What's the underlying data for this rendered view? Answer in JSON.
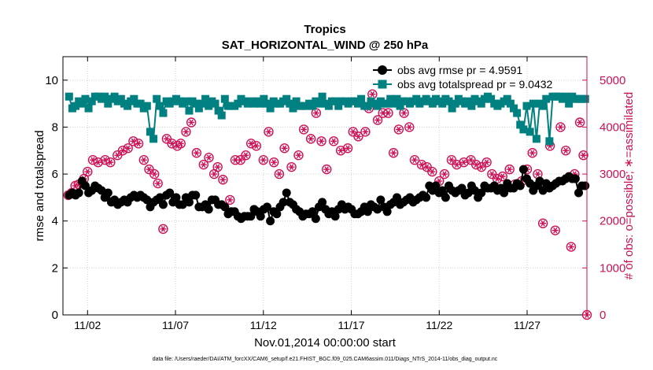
{
  "chart_data": {
    "type": "line",
    "title": "Tropics",
    "subtitle": "SAT_HORIZONTAL_WIND @ 250 hPa",
    "xlabel": "Nov.01,2014 00:00:00 start",
    "ylabel_left": "rmse and totalspread",
    "ylabel_right": "# of obs: o=possible; ∗=assimilated",
    "footer": "data file: /Users/raeder/DAI/ATM_forcXX/CAM6_setup/f.e21.FHIST_BGC.f09_025.CAM6assim.011/Diags_NTrS_2014-11/obs_diag_output.nc",
    "xlim": [
      0.6,
      30.4
    ],
    "ylim_left": [
      0,
      11
    ],
    "ylim_right": [
      0,
      5500
    ],
    "grid": true,
    "legend_position": "top-right",
    "x_ticks": [
      2,
      7,
      12,
      17,
      22,
      27
    ],
    "x_tick_labels": [
      "11/02",
      "11/07",
      "11/12",
      "11/17",
      "11/22",
      "11/27"
    ],
    "y_left_ticks": [
      0,
      2,
      4,
      6,
      8,
      10
    ],
    "y_left_tick_labels": [
      "0",
      "2",
      "4",
      "6",
      "8",
      "10"
    ],
    "y_right_ticks": [
      0,
      1000,
      2000,
      3000,
      4000,
      5000
    ],
    "y_right_tick_labels": [
      "0",
      "1000",
      "2000",
      "3000",
      "4000",
      "5000"
    ],
    "colors": {
      "rmse": "#000000",
      "spread": "#008080",
      "obs": "#cc1055",
      "axis": "#000000",
      "grid": "#d0d0d0"
    },
    "series": [
      {
        "name": "obs avg rmse pr = 4.9591",
        "axis": "left",
        "values": [
          5.1,
          5.2,
          5.1,
          5.2,
          5.7,
          5.5,
          5.2,
          5.3,
          5.5,
          5.4,
          5.3,
          5.0,
          5.2,
          4.8,
          4.9,
          4.7,
          4.8,
          4.9,
          4.8,
          5.0,
          5.1,
          5.0,
          5.1,
          5.0,
          4.9,
          4.6,
          4.8,
          4.9,
          5.0,
          4.7,
          5.1,
          5.2,
          4.8,
          5.0,
          4.7,
          4.7,
          5.0,
          4.8,
          5.1,
          5.1,
          4.6,
          4.6,
          4.7,
          4.5,
          4.9,
          4.9,
          4.7,
          4.7,
          4.6,
          4.3,
          4.4,
          4.4,
          4.2,
          4.1,
          4.2,
          4.2,
          4.2,
          4.5,
          4.4,
          4.2,
          4.5,
          4.6,
          4.0,
          4.4,
          4.3,
          4.6,
          4.8,
          5.2,
          4.8,
          4.7,
          4.5,
          4.4,
          4.2,
          4.3,
          4.3,
          4.4,
          4.1,
          4.6,
          4.8,
          4.5,
          4.3,
          4.4,
          4.2,
          4.5,
          4.7,
          4.5,
          4.6,
          4.5,
          4.3,
          4.3,
          4.4,
          4.6,
          4.4,
          4.7,
          4.6,
          4.5,
          4.9,
          4.6,
          4.4,
          4.7,
          4.8,
          5.0,
          4.7,
          4.8,
          4.9,
          5.0,
          4.8,
          4.9,
          5.0,
          5.1,
          5.0,
          5.5,
          5.3,
          5.5,
          5.2,
          5.3,
          5.0,
          5.5,
          5.3,
          5.2,
          5.3,
          5.4,
          5.1,
          5.2,
          5.5,
          5.3,
          5.0,
          5.2,
          5.5,
          5.4,
          5.4,
          5.5,
          5.3,
          5.4,
          5.2,
          5.6,
          5.4,
          5.4,
          5.6,
          5.5,
          6.2,
          5.8,
          5.6,
          5.3,
          5.5,
          5.7,
          5.3,
          5.6,
          5.4,
          5.5,
          5.6,
          5.7,
          5.7,
          5.8,
          5.9,
          5.8,
          5.8,
          5.2,
          5.5,
          5.5
        ]
      },
      {
        "name": "obs avg totalspread pr = 9.0432",
        "axis": "left",
        "values": [
          9.3,
          8.8,
          8.9,
          9.1,
          9.0,
          9.2,
          8.8,
          9.1,
          9.3,
          9.3,
          9.2,
          9.3,
          9.0,
          9.2,
          9.3,
          9.1,
          9.2,
          9.0,
          8.9,
          9.1,
          9.2,
          9.0,
          9.0,
          8.8,
          8.9,
          7.8,
          7.5,
          9.2,
          8.9,
          8.6,
          9.1,
          9.0,
          9.1,
          9.2,
          9.1,
          9.0,
          9.1,
          8.7,
          9.1,
          9.0,
          8.8,
          9.0,
          9.2,
          8.9,
          9.1,
          9.0,
          8.7,
          8.5,
          9.2,
          8.9,
          8.9,
          8.9,
          9.0,
          9.2,
          9.1,
          9.0,
          9.1,
          9.0,
          9.1,
          9.0,
          9.2,
          9.0,
          8.8,
          9.1,
          9.0,
          9.0,
          9.1,
          9.2,
          9.0,
          8.8,
          9.1,
          8.9,
          8.9,
          8.9,
          9.0,
          8.9,
          9.1,
          9.0,
          9.3,
          9.0,
          8.9,
          9.1,
          9.1,
          8.9,
          9.1,
          9.1,
          9.0,
          9.1,
          9.1,
          9.0,
          9.2,
          8.9,
          8.9,
          9.1,
          9.0,
          8.9,
          9.1,
          9.0,
          9.0,
          9.2,
          9.0,
          9.2,
          8.9,
          9.1,
          9.1,
          9.0,
          9.1,
          9.2,
          9.0,
          9.1,
          9.2,
          9.1,
          9.0,
          9.2,
          9.1,
          9.0,
          9.2,
          9.1,
          8.8,
          9.0,
          9.2,
          9.1,
          9.0,
          9.1,
          8.9,
          9.2,
          9.1,
          9.0,
          9.2,
          9.3,
          9.2,
          9.0,
          8.9,
          9.0,
          9.1,
          9.2,
          9.0,
          8.8,
          8.6,
          8.1,
          7.9,
          8.9,
          7.8,
          9.0,
          7.5,
          9.0,
          8.9,
          9.2,
          7.4,
          9.3,
          9.3,
          9.3,
          9.2,
          9.3,
          9.0,
          9.3,
          9.2,
          9.2,
          9.2,
          9.2
        ]
      },
      {
        "name": "obs possible",
        "axis": "right",
        "x": [
          0.9,
          1.1,
          1.3,
          1.5,
          1.8,
          2.0,
          2.3,
          2.6,
          3.0,
          3.3,
          3.7,
          4.0,
          4.3,
          4.6,
          4.9,
          5.2,
          5.5,
          5.8,
          6.0,
          6.3,
          6.5,
          6.8,
          7.1,
          7.3,
          7.6,
          7.9,
          8.2,
          8.6,
          8.9,
          9.2,
          9.4,
          9.7,
          10.1,
          10.4,
          10.7,
          11.0,
          11.3,
          11.6,
          12.0,
          12.3,
          12.6,
          12.9,
          13.2,
          13.6,
          14.0,
          14.3,
          14.7,
          15.0,
          15.3,
          15.6,
          16.0,
          16.4,
          16.8,
          17.1,
          17.4,
          17.8,
          18.0,
          18.2,
          18.5,
          18.8,
          19.1,
          19.4,
          19.7,
          20.0,
          20.3,
          20.6,
          21.0,
          21.3,
          21.6,
          22.0,
          22.3,
          22.7,
          23.0,
          23.4,
          23.8,
          24.1,
          24.4,
          24.7,
          25.0,
          25.3,
          25.6,
          26.0,
          26.3,
          26.7,
          27.0,
          27.3,
          27.6,
          27.9,
          28.3,
          28.6,
          28.9,
          29.2,
          29.5,
          29.7,
          30.0,
          30.2
        ],
        "values": [
          2550,
          2600,
          2750,
          2780,
          2900,
          3050,
          3300,
          3250,
          3300,
          3250,
          3400,
          3500,
          3550,
          3700,
          3650,
          3300,
          3100,
          3000,
          2800,
          1830,
          3750,
          3650,
          3600,
          3650,
          3900,
          4100,
          3450,
          3200,
          3350,
          3000,
          3150,
          2880,
          2450,
          3300,
          3300,
          3400,
          3650,
          3600,
          3300,
          3900,
          3250,
          3000,
          3550,
          3150,
          3400,
          3950,
          3750,
          4300,
          3700,
          3100,
          3700,
          3500,
          3550,
          3900,
          3800,
          3900,
          4400,
          4700,
          4150,
          4300,
          4300,
          3450,
          3950,
          4300,
          4000,
          3300,
          3200,
          3150,
          3050,
          2850,
          3000,
          3300,
          3200,
          3250,
          3300,
          3200,
          3150,
          3250,
          3000,
          2900,
          2950,
          3100,
          2780,
          2850,
          3100,
          3450,
          3000,
          1950,
          3600,
          1800,
          4000,
          3500,
          1450,
          3000,
          4100,
          3400
        ]
      },
      {
        "name": "obs assimilated",
        "axis": "right",
        "same_as": "obs possible"
      }
    ]
  }
}
